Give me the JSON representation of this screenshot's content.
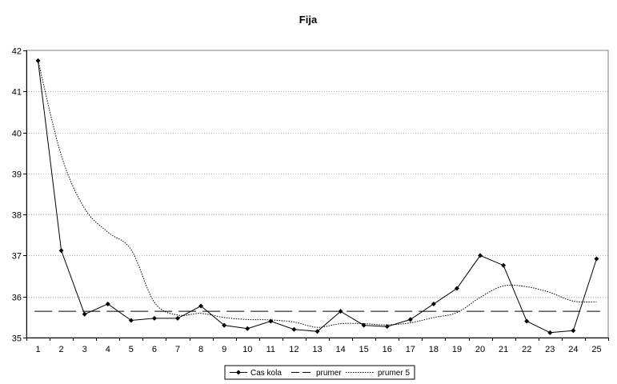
{
  "chart_data": {
    "type": "line",
    "title": "Fija",
    "xlabel": "",
    "ylabel": "",
    "categories": [
      "1",
      "2",
      "3",
      "4",
      "5",
      "6",
      "7",
      "8",
      "9",
      "10",
      "11",
      "12",
      "13",
      "14",
      "15",
      "16",
      "17",
      "18",
      "19",
      "20",
      "21",
      "22",
      "23",
      "24",
      "25"
    ],
    "ylim": [
      35,
      42
    ],
    "yticks": [
      "35",
      "36",
      "37",
      "38",
      "39",
      "40",
      "41",
      "42"
    ],
    "grid": "horizontal dotted",
    "legend_position": "bottom",
    "series": [
      {
        "name": "Cas kola",
        "style": "solid-diamond",
        "color": "#000000",
        "values": [
          41.75,
          37.12,
          35.57,
          35.82,
          35.42,
          35.47,
          35.47,
          35.77,
          35.3,
          35.22,
          35.4,
          35.2,
          35.15,
          35.64,
          35.3,
          35.27,
          35.44,
          35.82,
          36.2,
          37.0,
          36.76,
          35.4,
          35.12,
          35.17,
          36.92
        ]
      },
      {
        "name": "prumer",
        "style": "long-dash",
        "color": "#000000",
        "values": [
          35.64,
          35.64,
          35.64,
          35.64,
          35.64,
          35.64,
          35.64,
          35.64,
          35.64,
          35.64,
          35.64,
          35.64,
          35.64,
          35.64,
          35.64,
          35.64,
          35.64,
          35.64,
          35.64,
          35.64,
          35.64,
          35.64,
          35.64,
          35.64,
          35.64
        ]
      },
      {
        "name": "prumer 5",
        "style": "dotted",
        "color": "#000000",
        "values": [
          41.75,
          39.44,
          38.15,
          37.57,
          37.14,
          35.86,
          35.55,
          35.59,
          35.49,
          35.44,
          35.43,
          35.38,
          35.25,
          35.34,
          35.34,
          35.31,
          35.36,
          35.49,
          35.61,
          35.98,
          36.26,
          36.24,
          36.1,
          35.89,
          35.87
        ]
      }
    ]
  }
}
